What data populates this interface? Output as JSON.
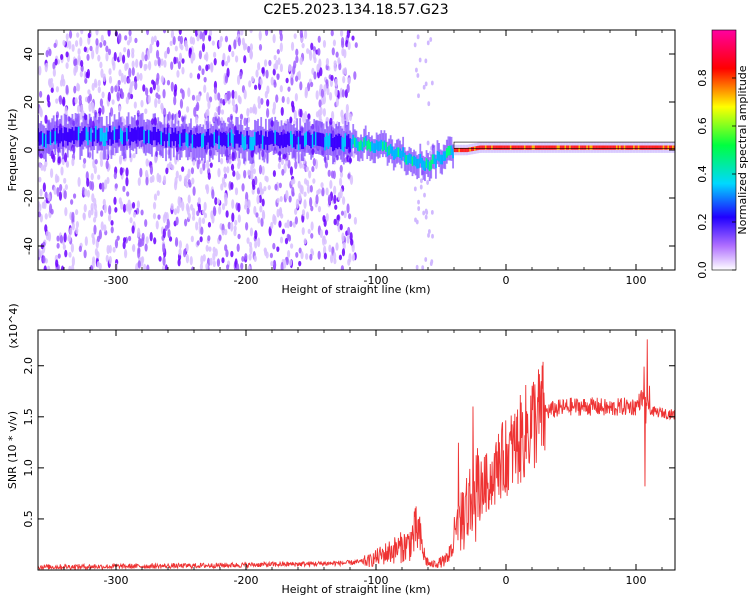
{
  "figure_title": "C2E5.2023.134.18.57.G23",
  "chart_data": [
    {
      "type": "heatmap",
      "title": "",
      "xlabel": "Height of straight line (km)",
      "ylabel": "Frequency (Hz)",
      "xlim": [
        -360,
        130
      ],
      "ylim": [
        -50,
        50
      ],
      "x_ticks": [
        -300,
        -200,
        -100,
        0,
        100
      ],
      "y_ticks": [
        -40,
        -20,
        0,
        20,
        40
      ],
      "colorbar": {
        "label": "Normalized spectral amplitude",
        "range": [
          0.0,
          1.0
        ],
        "ticks": [
          0.0,
          0.2,
          0.4,
          0.6,
          0.8
        ],
        "tick_labels": [
          "0.0",
          "0.2",
          "0.4",
          "0.6",
          "0.8"
        ],
        "colormap": [
          "#ffffff",
          "#9b4dff",
          "#1f00ff",
          "#00d8ff",
          "#00ff40",
          "#ffff00",
          "#ff0000",
          "#ff00a0"
        ]
      },
      "ridge": {
        "description_points_x": [
          -360,
          -300,
          -250,
          -200,
          -150,
          -120,
          -100,
          -80,
          -60,
          -50,
          -40,
          -30,
          -20,
          0,
          50,
          100,
          130
        ],
        "description_points_y": [
          5,
          6,
          5,
          4,
          4,
          3,
          2,
          -2,
          -6,
          -3,
          0,
          0,
          1,
          1,
          1,
          1,
          1
        ],
        "peak_amplitude_x": [
          -40,
          130
        ],
        "noise_region_x": [
          -360,
          -115
        ]
      },
      "grid": false
    },
    {
      "type": "line",
      "title": "",
      "xlabel": "Height of straight line (km)",
      "ylabel": "SNR (10 * v/v)",
      "scale_note": "(x10^4)",
      "xlim": [
        -360,
        130
      ],
      "ylim": [
        0,
        23500
      ],
      "x_ticks": [
        -300,
        -200,
        -100,
        0,
        100
      ],
      "y_ticks": [
        5000,
        10000,
        15000,
        20000
      ],
      "y_tick_labels": [
        "0.5",
        "1.0",
        "1.5",
        "2.0"
      ],
      "series": [
        {
          "color": "#ee3333",
          "x": [
            -360,
            -300,
            -250,
            -200,
            -150,
            -120,
            -105,
            -95,
            -85,
            -75,
            -68,
            -62,
            -58,
            -52,
            -45,
            -40,
            -35,
            -30,
            -25,
            -20,
            -15,
            -10,
            -5,
            0,
            10,
            20,
            30,
            40,
            50,
            60,
            70,
            80,
            90,
            100,
            105,
            108,
            110,
            112,
            120,
            130
          ],
          "y": [
            300,
            350,
            400,
            500,
            600,
            700,
            900,
            1500,
            2000,
            2500,
            4000,
            1000,
            500,
            700,
            1000,
            3000,
            5000,
            6000,
            7000,
            8000,
            8500,
            9000,
            10500,
            11000,
            12500,
            14500,
            15500,
            15800,
            16000,
            16000,
            16000,
            15800,
            16000,
            16000,
            17000,
            16500,
            16000,
            15500,
            15400,
            15200
          ]
        }
      ],
      "grid": false
    }
  ]
}
